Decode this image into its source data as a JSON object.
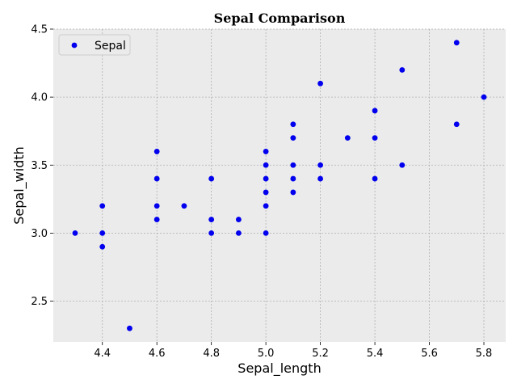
{
  "chart_data": {
    "type": "scatter",
    "title": "Sepal Comparison",
    "xlabel": "Sepal_length",
    "ylabel": "Sepal_width",
    "xlim": [
      4.22,
      5.88
    ],
    "ylim": [
      2.2,
      4.5
    ],
    "xticks": [
      "4.4",
      "4.6",
      "4.8",
      "5.0",
      "5.2",
      "5.4",
      "5.6",
      "5.8"
    ],
    "yticks": [
      "2.5",
      "3.0",
      "3.5",
      "4.0",
      "4.5"
    ],
    "grid": true,
    "legend_position": "top-left",
    "series": [
      {
        "name": "Sepal",
        "color": "#0000ee",
        "points": [
          [
            4.3,
            3.0
          ],
          [
            4.4,
            2.9
          ],
          [
            4.4,
            3.0
          ],
          [
            4.4,
            3.2
          ],
          [
            4.5,
            2.3
          ],
          [
            4.6,
            3.1
          ],
          [
            4.6,
            3.2
          ],
          [
            4.6,
            3.4
          ],
          [
            4.6,
            3.6
          ],
          [
            4.7,
            3.2
          ],
          [
            4.8,
            3.0
          ],
          [
            4.8,
            3.1
          ],
          [
            4.8,
            3.4
          ],
          [
            4.9,
            3.0
          ],
          [
            4.9,
            3.1
          ],
          [
            5.0,
            3.0
          ],
          [
            5.0,
            3.2
          ],
          [
            5.0,
            3.3
          ],
          [
            5.0,
            3.4
          ],
          [
            5.0,
            3.5
          ],
          [
            5.0,
            3.6
          ],
          [
            5.1,
            3.3
          ],
          [
            5.1,
            3.4
          ],
          [
            5.1,
            3.5
          ],
          [
            5.1,
            3.7
          ],
          [
            5.1,
            3.8
          ],
          [
            5.2,
            3.4
          ],
          [
            5.2,
            3.5
          ],
          [
            5.2,
            4.1
          ],
          [
            5.3,
            3.7
          ],
          [
            5.4,
            3.4
          ],
          [
            5.4,
            3.7
          ],
          [
            5.4,
            3.9
          ],
          [
            5.5,
            3.5
          ],
          [
            5.5,
            4.2
          ],
          [
            5.7,
            3.8
          ],
          [
            5.7,
            4.4
          ],
          [
            5.8,
            4.0
          ]
        ]
      }
    ]
  },
  "colors": {
    "plot_background": "#ebebeb",
    "grid": "#b0b0b0",
    "marker": "#0000ee"
  }
}
